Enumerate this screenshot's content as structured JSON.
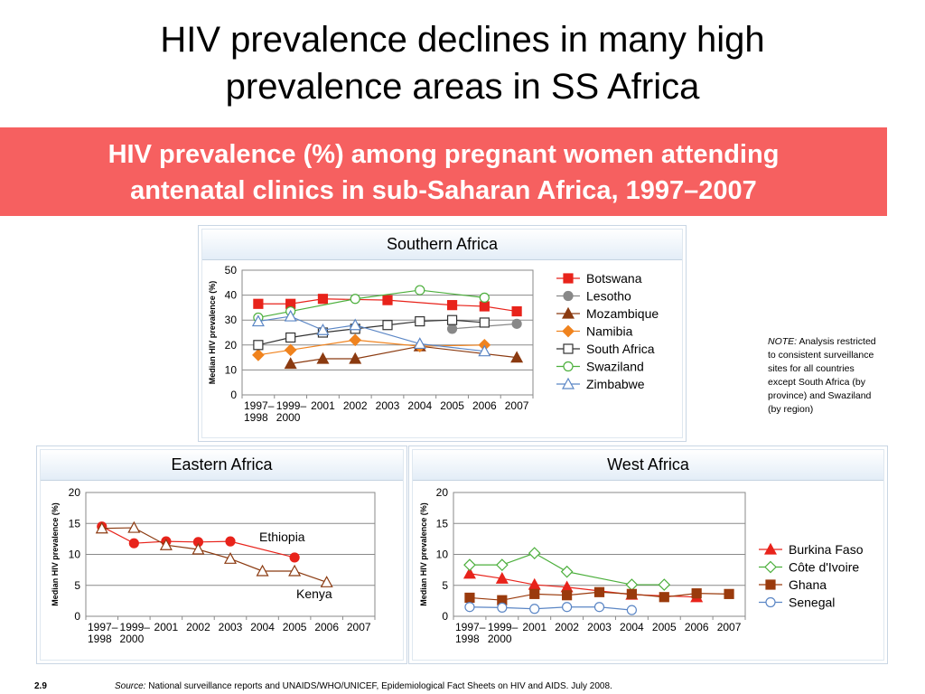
{
  "slide": {
    "title_line1": "HIV prevalence declines in many high",
    "title_line2": "prevalence areas in SS Africa",
    "banner_line1": "HIV prevalence (%) among pregnant women attending",
    "banner_line2": "antenatal clinics in sub-Saharan Africa, 1997–2007",
    "note_label": "NOTE:",
    "note_text": "Analysis restricted to consistent surveillance sites for all countries except South Africa (by province) and Swaziland (by region)",
    "slide_number": "2.9",
    "source_label": "Source:",
    "source_text": "National surveillance reports and UNAIDS/WHO/UNICEF, Epidemiological Fact Sheets on HIV and AIDS.  July 2008."
  },
  "colors": {
    "banner": "#f66060",
    "botswana": "#e8231b",
    "lesotho": "#888888",
    "mozambique": "#8b3a10",
    "namibia": "#f0831e",
    "south_africa": "#333333",
    "swaziland": "#4caf3c",
    "zimbabwe": "#5b86c5",
    "ethiopia": "#e8231b",
    "kenya": "#8b3a10",
    "burkina_faso": "#e8231b",
    "cote_divoire": "#4caf3c",
    "ghana": "#9a3a0c",
    "senegal": "#5b86c5"
  },
  "chart_data": [
    {
      "type": "line",
      "title": "Southern Africa",
      "ylabel": "Median HIV prevalence (%)",
      "xlabel": "",
      "categories": [
        "1997–1998",
        "1999–2000",
        "2001",
        "2002",
        "2003",
        "2004",
        "2005",
        "2006",
        "2007"
      ],
      "tick_lines": [
        [
          "1997–",
          "1998"
        ],
        [
          "1999–",
          "2000"
        ],
        [
          "2001",
          ""
        ],
        [
          "2002",
          ""
        ],
        [
          "2003",
          ""
        ],
        [
          "2004",
          ""
        ],
        [
          "2005",
          ""
        ],
        [
          "2006",
          ""
        ],
        [
          "2007",
          ""
        ]
      ],
      "ylim": [
        0,
        50
      ],
      "yticks": [
        0,
        10,
        20,
        30,
        40,
        50
      ],
      "grid": true,
      "legend": "right",
      "series": [
        {
          "name": "Botswana",
          "marker": "square-filled",
          "color": "#e8231b",
          "values": [
            36.5,
            36.5,
            38.5,
            null,
            38,
            null,
            36,
            35.5,
            33.5
          ]
        },
        {
          "name": "Lesotho",
          "marker": "circle-filled",
          "color": "#888888",
          "values": [
            null,
            null,
            null,
            null,
            null,
            null,
            26.5,
            null,
            28.5
          ]
        },
        {
          "name": "Mozambique",
          "marker": "triangle-filled",
          "color": "#8b3a10",
          "values": [
            null,
            12.5,
            14.5,
            14.5,
            null,
            19.5,
            null,
            null,
            15
          ]
        },
        {
          "name": "Namibia",
          "marker": "diamond-filled",
          "color": "#f0831e",
          "values": [
            16,
            18,
            null,
            22,
            null,
            19.5,
            null,
            20,
            null
          ]
        },
        {
          "name": "South Africa",
          "marker": "square-open",
          "color": "#333333",
          "values": [
            20,
            23,
            25,
            26.5,
            28,
            29.5,
            30,
            29,
            null
          ]
        },
        {
          "name": "Swaziland",
          "marker": "circle-open",
          "color": "#4caf3c",
          "values": [
            31,
            33.5,
            null,
            38.5,
            null,
            42,
            null,
            39,
            null
          ]
        },
        {
          "name": "Zimbabwe",
          "marker": "triangle-open",
          "color": "#5b86c5",
          "values": [
            29.5,
            31.5,
            26,
            28,
            null,
            20.5,
            null,
            17.5,
            null
          ]
        }
      ]
    },
    {
      "type": "line",
      "title": "Eastern Africa",
      "ylabel": "Median HIV prevalence (%)",
      "xlabel": "",
      "categories": [
        "1997–1998",
        "1999–2000",
        "2001",
        "2002",
        "2003",
        "2004",
        "2005",
        "2006",
        "2007"
      ],
      "tick_lines": [
        [
          "1997–",
          "1998"
        ],
        [
          "1999–",
          "2000"
        ],
        [
          "2001",
          ""
        ],
        [
          "2002",
          ""
        ],
        [
          "2003",
          ""
        ],
        [
          "2004",
          ""
        ],
        [
          "2005",
          ""
        ],
        [
          "2006",
          ""
        ],
        [
          "2007",
          ""
        ]
      ],
      "ylim": [
        0,
        20
      ],
      "yticks": [
        0,
        5,
        10,
        15,
        20
      ],
      "grid": true,
      "legend": "inline",
      "series": [
        {
          "name": "Ethiopia",
          "marker": "circle-filled",
          "color": "#e8231b",
          "values": [
            14.5,
            11.8,
            12.1,
            12,
            12.1,
            null,
            9.5,
            null,
            null
          ]
        },
        {
          "name": "Kenya",
          "marker": "triangle-open",
          "color": "#8b3a10",
          "values": [
            14.2,
            14.3,
            11.5,
            10.8,
            9.3,
            7.3,
            7.3,
            5.5,
            null
          ]
        }
      ]
    },
    {
      "type": "line",
      "title": "West Africa",
      "ylabel": "Median HIV prevalence (%)",
      "xlabel": "",
      "categories": [
        "1997–1998",
        "1999–2000",
        "2001",
        "2002",
        "2003",
        "2004",
        "2005",
        "2006",
        "2007"
      ],
      "tick_lines": [
        [
          "1997–",
          "1998"
        ],
        [
          "1999–",
          "2000"
        ],
        [
          "2001",
          ""
        ],
        [
          "2002",
          ""
        ],
        [
          "2003",
          ""
        ],
        [
          "2004",
          ""
        ],
        [
          "2005",
          ""
        ],
        [
          "2006",
          ""
        ],
        [
          "2007",
          ""
        ]
      ],
      "ylim": [
        0,
        20
      ],
      "yticks": [
        0,
        5,
        10,
        15,
        20
      ],
      "grid": true,
      "legend": "right",
      "series": [
        {
          "name": "Burkina Faso",
          "marker": "triangle-filled",
          "color": "#e8231b",
          "values": [
            6.9,
            6.1,
            5.1,
            4.7,
            null,
            3.5,
            null,
            3.1,
            null
          ]
        },
        {
          "name": "Côte d'Ivoire",
          "marker": "diamond-open",
          "color": "#4caf3c",
          "values": [
            8.3,
            8.3,
            10.2,
            7.2,
            null,
            5.1,
            5.1,
            null,
            null
          ]
        },
        {
          "name": "Ghana",
          "marker": "square-filled",
          "color": "#9a3a0c",
          "values": [
            3,
            2.6,
            3.6,
            3.4,
            3.9,
            3.6,
            3.1,
            3.7,
            3.6
          ]
        },
        {
          "name": "Senegal",
          "marker": "circle-open",
          "color": "#5b86c5",
          "values": [
            1.5,
            1.4,
            1.2,
            1.5,
            1.5,
            1,
            null,
            null,
            null
          ]
        }
      ]
    }
  ]
}
